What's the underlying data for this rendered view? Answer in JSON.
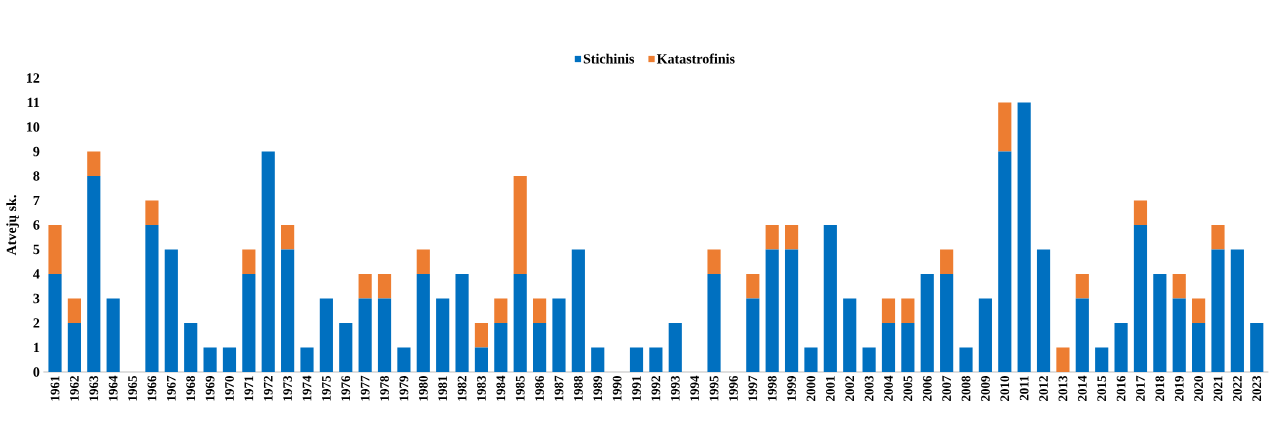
{
  "chart_data": {
    "type": "bar",
    "stacked": true,
    "ylabel": "Atvejų sk.",
    "legend": "top",
    "categories": [
      "1961",
      "1962",
      "1963",
      "1964",
      "1965",
      "1966",
      "1967",
      "1968",
      "1969",
      "1970",
      "1971",
      "1972",
      "1973",
      "1974",
      "1975",
      "1976",
      "1977",
      "1978",
      "1979",
      "1980",
      "1981",
      "1982",
      "1983",
      "1984",
      "1985",
      "1986",
      "1987",
      "1988",
      "1989",
      "1990",
      "1991",
      "1992",
      "1993",
      "1994",
      "1995",
      "1996",
      "1997",
      "1998",
      "1999",
      "2000",
      "2001",
      "2002",
      "2003",
      "2004",
      "2005",
      "2006",
      "2007",
      "2008",
      "2009",
      "2010",
      "2011",
      "2012",
      "2013",
      "2014",
      "2015",
      "2016",
      "2017",
      "2018",
      "2019",
      "2020",
      "2021",
      "2022",
      "2023"
    ],
    "ylim": [
      0,
      12
    ],
    "yticks": [
      0,
      1,
      2,
      3,
      4,
      5,
      6,
      7,
      8,
      9,
      10,
      11,
      12
    ],
    "series": [
      {
        "name": "Stichinis",
        "color": "#0070c0",
        "values": [
          4,
          2,
          8,
          3,
          0,
          6,
          5,
          2,
          1,
          1,
          4,
          9,
          5,
          1,
          3,
          2,
          3,
          3,
          1,
          4,
          3,
          4,
          1,
          2,
          4,
          2,
          3,
          5,
          1,
          0,
          1,
          1,
          2,
          0,
          4,
          0,
          3,
          5,
          5,
          1,
          6,
          3,
          1,
          2,
          2,
          4,
          4,
          1,
          3,
          9,
          11,
          5,
          0,
          3,
          1,
          2,
          6,
          4,
          3,
          2,
          5,
          5,
          2
        ]
      },
      {
        "name": "Katastrofinis",
        "color": "#ed7d31",
        "values": [
          2,
          1,
          1,
          0,
          0,
          1,
          0,
          0,
          0,
          0,
          1,
          0,
          1,
          0,
          0,
          0,
          1,
          1,
          0,
          1,
          0,
          0,
          1,
          1,
          4,
          1,
          0,
          0,
          0,
          0,
          0,
          0,
          0,
          0,
          1,
          0,
          1,
          1,
          1,
          0,
          0,
          0,
          0,
          1,
          1,
          0,
          1,
          0,
          0,
          2,
          0,
          0,
          1,
          1,
          0,
          0,
          1,
          0,
          1,
          1,
          1,
          0,
          0
        ]
      }
    ]
  }
}
